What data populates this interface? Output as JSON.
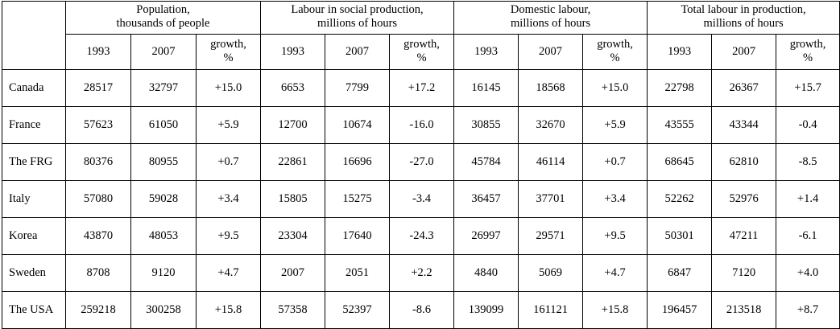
{
  "groups": [
    {
      "line1": "Population,",
      "line2": "thousands of people"
    },
    {
      "line1": "Labour in social production,",
      "line2": "millions of hours"
    },
    {
      "line1": "Domestic labour,",
      "line2": "millions of hours"
    },
    {
      "line1": "Total labour in production,",
      "line2": "millions of hours"
    }
  ],
  "subheaders": {
    "y1": "1993",
    "y2": "2007",
    "growth1": "growth,",
    "growth2": "%"
  },
  "rows": [
    {
      "country": "Canada",
      "values": [
        "28517",
        "32797",
        "+15.0",
        "6653",
        "7799",
        "+17.2",
        "16145",
        "18568",
        "+15.0",
        "22798",
        "26367",
        "+15.7"
      ]
    },
    {
      "country": "France",
      "values": [
        "57623",
        "61050",
        "+5.9",
        "12700",
        "10674",
        "-16.0",
        "30855",
        "32670",
        "+5.9",
        "43555",
        "43344",
        "-0.4"
      ]
    },
    {
      "country": "The FRG",
      "values": [
        "80376",
        "80955",
        "+0.7",
        "22861",
        "16696",
        "-27.0",
        "45784",
        "46114",
        "+0.7",
        "68645",
        "62810",
        "-8.5"
      ]
    },
    {
      "country": "Italy",
      "values": [
        "57080",
        "59028",
        "+3.4",
        "15805",
        "15275",
        "-3.4",
        "36457",
        "37701",
        "+3.4",
        "52262",
        "52976",
        "+1.4"
      ]
    },
    {
      "country": "Korea",
      "values": [
        "43870",
        "48053",
        "+9.5",
        "23304",
        "17640",
        "-24.3",
        "26997",
        "29571",
        "+9.5",
        "50301",
        "47211",
        "-6.1"
      ]
    },
    {
      "country": "Sweden",
      "values": [
        "8708",
        "9120",
        "+4.7",
        "2007",
        "2051",
        "+2.2",
        "4840",
        "5069",
        "+4.7",
        "6847",
        "7120",
        "+4.0"
      ]
    },
    {
      "country": "The USA",
      "values": [
        "259218",
        "300258",
        "+15.8",
        "57358",
        "52397",
        "-8.6",
        "139099",
        "161121",
        "+15.8",
        "196457",
        "213518",
        "+8.7"
      ]
    }
  ]
}
